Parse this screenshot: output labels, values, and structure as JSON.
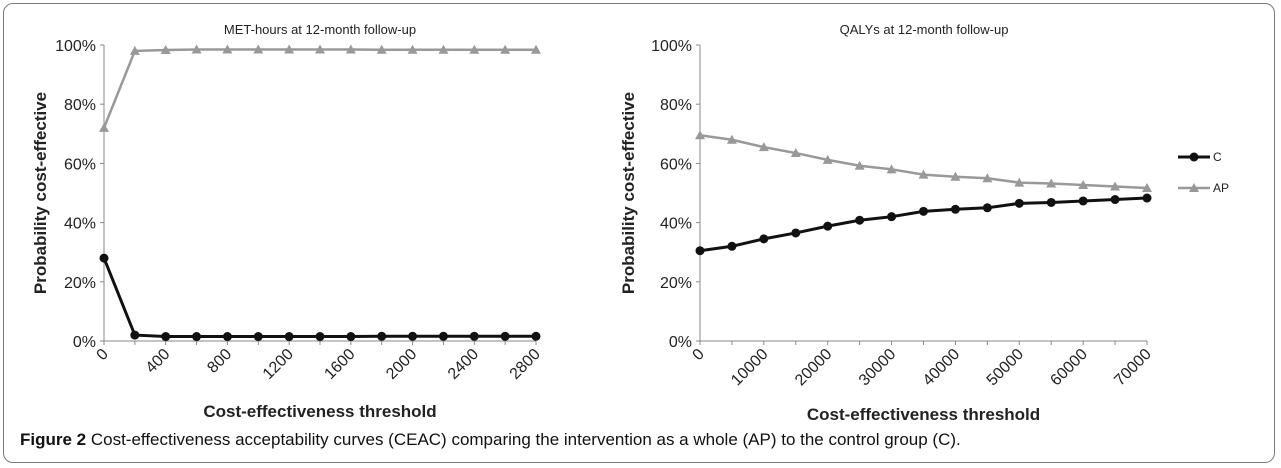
{
  "caption": {
    "label": "Figure 2",
    "text": " Cost-effectiveness acceptability curves (CEAC) comparing the intervention as a whole (AP) to the control group (C)."
  },
  "colors": {
    "C": "#111111",
    "AP": "#999999"
  },
  "legend": [
    "C",
    "AP"
  ],
  "chart_data": [
    {
      "type": "line",
      "title": "MET-hours at 12-month follow-up",
      "xlabel": "Cost-effectiveness threshold",
      "ylabel": "Probability cost-effective",
      "x": [
        0,
        200,
        400,
        600,
        800,
        1000,
        1200,
        1400,
        1600,
        1800,
        2000,
        2200,
        2400,
        2600,
        2800
      ],
      "xticks": [
        "0",
        "400",
        "800",
        "1200",
        "1600",
        "2000",
        "2400",
        "2800"
      ],
      "xlim": [
        0,
        2800
      ],
      "ylim": [
        0,
        100
      ],
      "yticks": [
        "0%",
        "20%",
        "40%",
        "60%",
        "80%",
        "100%"
      ],
      "series": [
        {
          "name": "C",
          "values": [
            28,
            2,
            1.5,
            1.5,
            1.5,
            1.5,
            1.5,
            1.5,
            1.5,
            1.6,
            1.6,
            1.6,
            1.6,
            1.6,
            1.6
          ]
        },
        {
          "name": "AP",
          "values": [
            72,
            98,
            98.3,
            98.5,
            98.5,
            98.5,
            98.5,
            98.5,
            98.5,
            98.4,
            98.4,
            98.4,
            98.4,
            98.4,
            98.4
          ]
        }
      ]
    },
    {
      "type": "line",
      "title": "QALYs at 12-month follow-up",
      "xlabel": "Cost-effectiveness threshold",
      "ylabel": "Probability cost-effective",
      "x": [
        0,
        5000,
        10000,
        15000,
        20000,
        25000,
        30000,
        35000,
        40000,
        45000,
        50000,
        55000,
        60000,
        65000,
        70000
      ],
      "xticks": [
        "0",
        "10000",
        "20000",
        "30000",
        "40000",
        "50000",
        "60000",
        "70000"
      ],
      "xlim": [
        0,
        70000
      ],
      "ylim": [
        0,
        100
      ],
      "yticks": [
        "0%",
        "20%",
        "40%",
        "60%",
        "80%",
        "100%"
      ],
      "series": [
        {
          "name": "C",
          "values": [
            30.5,
            32,
            34.5,
            36.5,
            38.8,
            40.8,
            42,
            43.8,
            44.5,
            45,
            46.5,
            46.8,
            47.3,
            47.8,
            48.3
          ]
        },
        {
          "name": "AP",
          "values": [
            69.5,
            68,
            65.5,
            63.5,
            61.2,
            59.2,
            58,
            56.2,
            55.5,
            55,
            53.5,
            53.2,
            52.7,
            52.2,
            51.7
          ]
        }
      ]
    }
  ]
}
